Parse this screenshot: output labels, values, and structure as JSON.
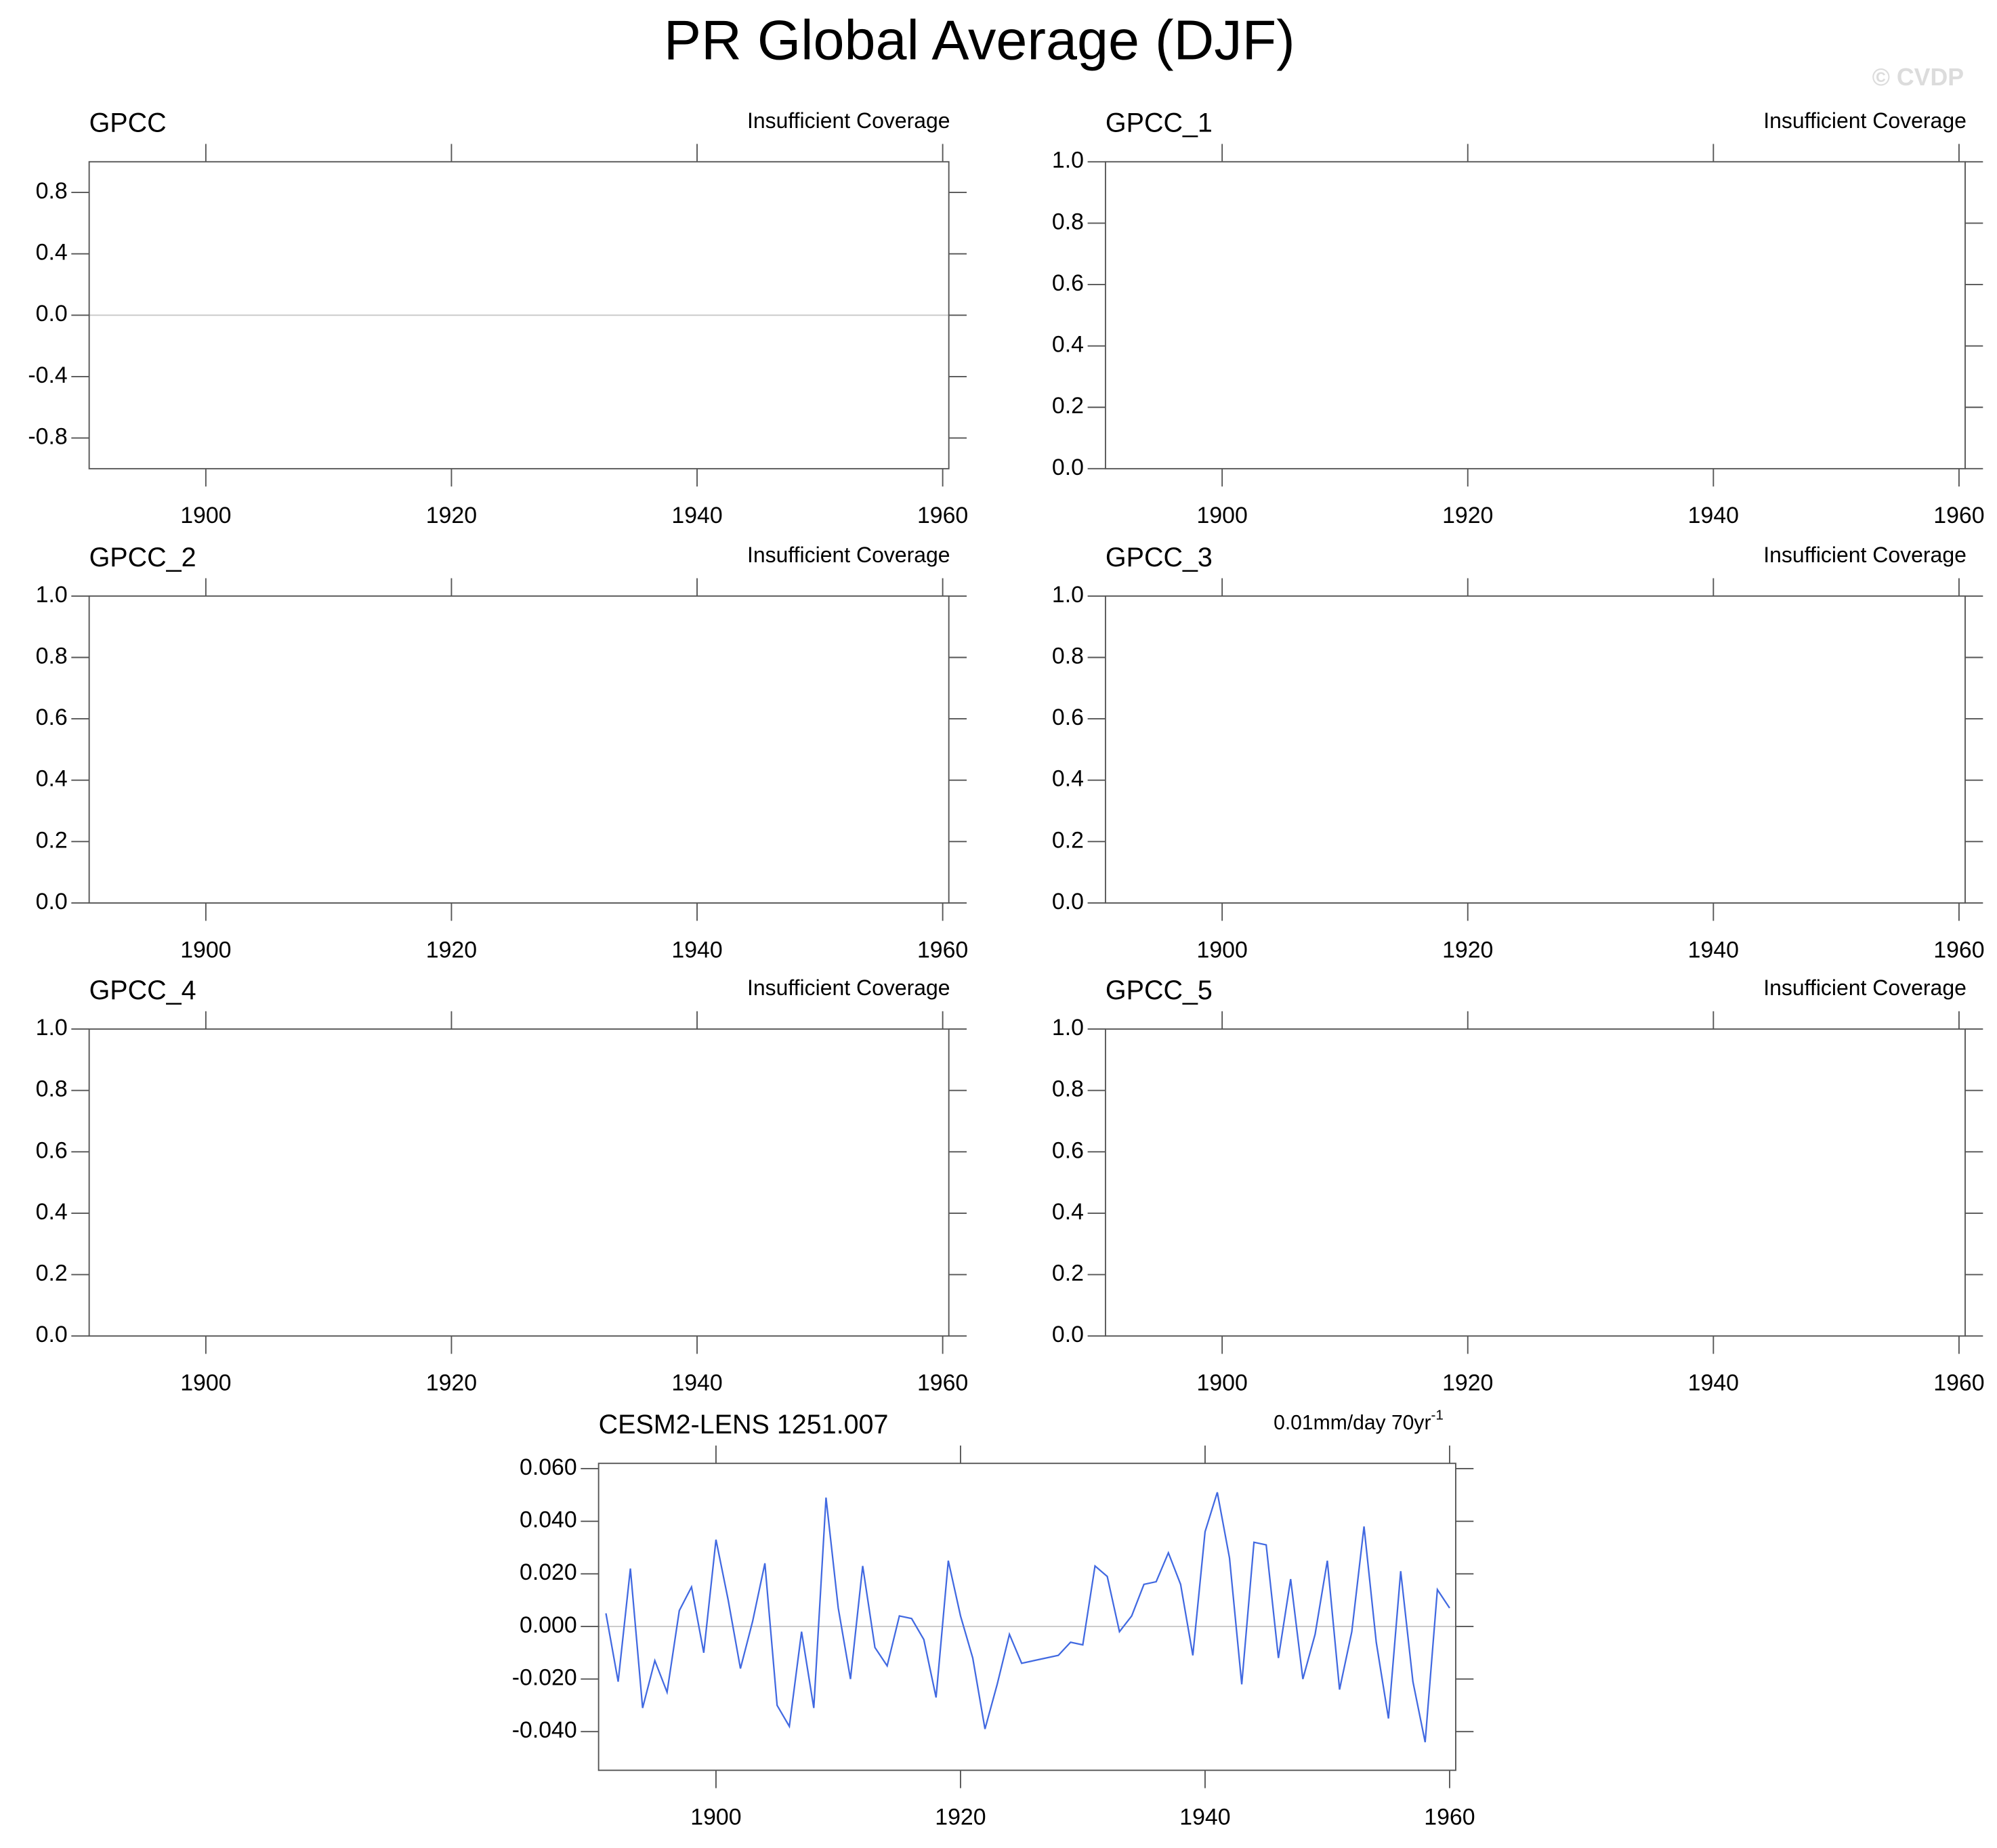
{
  "title": "PR Global Average (DJF)",
  "watermark": "© CVDP",
  "chart_data": [
    {
      "type": "line",
      "title": "GPCC",
      "subtitle": "Insufficient Coverage",
      "series": [],
      "zero_line": true,
      "xlim": [
        1890.5,
        1960.5
      ],
      "xticks": [
        1900,
        1920,
        1940,
        1960
      ],
      "ylim": [
        -1,
        1
      ],
      "yticks": [
        -0.8,
        -0.4,
        {
          "value": 0,
          "label": "0.0"
        },
        0.4,
        0.8
      ]
    },
    {
      "type": "line",
      "title": "GPCC_1",
      "subtitle": "Insufficient Coverage",
      "series": [],
      "xlim": [
        1890.5,
        1960.5
      ],
      "xticks": [
        1900,
        1920,
        1940,
        1960
      ],
      "ylim": [
        0,
        1
      ],
      "yticks": [
        {
          "value": 0,
          "label": "0.0"
        },
        0.2,
        0.4,
        0.6,
        0.8,
        {
          "value": 1,
          "label": "1.0"
        }
      ]
    },
    {
      "type": "line",
      "title": "GPCC_2",
      "subtitle": "Insufficient Coverage",
      "series": [],
      "xlim": [
        1890.5,
        1960.5
      ],
      "xticks": [
        1900,
        1920,
        1940,
        1960
      ],
      "ylim": [
        0,
        1
      ],
      "yticks": [
        {
          "value": 0,
          "label": "0.0"
        },
        0.2,
        0.4,
        0.6,
        0.8,
        {
          "value": 1,
          "label": "1.0"
        }
      ]
    },
    {
      "type": "line",
      "title": "GPCC_3",
      "subtitle": "Insufficient Coverage",
      "series": [],
      "xlim": [
        1890.5,
        1960.5
      ],
      "xticks": [
        1900,
        1920,
        1940,
        1960
      ],
      "ylim": [
        0,
        1
      ],
      "yticks": [
        {
          "value": 0,
          "label": "0.0"
        },
        0.2,
        0.4,
        0.6,
        0.8,
        {
          "value": 1,
          "label": "1.0"
        }
      ]
    },
    {
      "type": "line",
      "title": "GPCC_4",
      "subtitle": "Insufficient Coverage",
      "series": [],
      "xlim": [
        1890.5,
        1960.5
      ],
      "xticks": [
        1900,
        1920,
        1940,
        1960
      ],
      "ylim": [
        0,
        1
      ],
      "yticks": [
        {
          "value": 0,
          "label": "0.0"
        },
        0.2,
        0.4,
        0.6,
        0.8,
        {
          "value": 1,
          "label": "1.0"
        }
      ]
    },
    {
      "type": "line",
      "title": "GPCC_5",
      "subtitle": "Insufficient Coverage",
      "series": [],
      "xlim": [
        1890.5,
        1960.5
      ],
      "xticks": [
        1900,
        1920,
        1940,
        1960
      ],
      "ylim": [
        0,
        1
      ],
      "yticks": [
        {
          "value": 0,
          "label": "0.0"
        },
        0.2,
        0.4,
        0.6,
        0.8,
        {
          "value": 1,
          "label": "1.0"
        }
      ]
    },
    {
      "type": "line",
      "title": "CESM2-LENS 1251.007",
      "annotation": "0.01mm/day 70yr",
      "annotation_superscript": "-1",
      "zero_line": true,
      "xlim": [
        1890.4,
        1960.5
      ],
      "xticks": [
        1900,
        1920,
        1940,
        1960
      ],
      "ylim": [
        -0.0547,
        0.062
      ],
      "yticks": [
        {
          "value": -0.04,
          "label": "-0.040"
        },
        {
          "value": -0.02,
          "label": "-0.020"
        },
        {
          "value": 0,
          "label": "0.000"
        },
        {
          "value": 0.02,
          "label": "0.020"
        },
        {
          "value": 0.04,
          "label": "0.040"
        },
        {
          "value": 0.06,
          "label": "0.060"
        }
      ],
      "x": [
        1891,
        1892,
        1893,
        1894,
        1895,
        1896,
        1897,
        1898,
        1899,
        1900,
        1901,
        1902,
        1903,
        1904,
        1905,
        1906,
        1907,
        1908,
        1909,
        1910,
        1911,
        1912,
        1913,
        1914,
        1915,
        1916,
        1917,
        1918,
        1919,
        1920,
        1921,
        1922,
        1923,
        1924,
        1925,
        1926,
        1927,
        1928,
        1929,
        1930,
        1931,
        1932,
        1933,
        1934,
        1935,
        1936,
        1937,
        1938,
        1939,
        1940,
        1941,
        1942,
        1943,
        1944,
        1945,
        1946,
        1947,
        1948,
        1949,
        1950,
        1951,
        1952,
        1953,
        1954,
        1955,
        1956,
        1957,
        1958,
        1959,
        1960
      ],
      "series": [
        {
          "color": "#4169e1",
          "values": [
            0.005,
            -0.021,
            0.022,
            -0.031,
            -0.013,
            -0.025,
            0.006,
            0.015,
            -0.01,
            0.033,
            0.01,
            -0.016,
            0.002,
            0.024,
            -0.03,
            -0.038,
            -0.002,
            -0.031,
            0.049,
            0.007,
            -0.02,
            0.023,
            -0.008,
            -0.015,
            0.004,
            0.003,
            -0.005,
            -0.027,
            0.025,
            0.004,
            -0.012,
            -0.039,
            -0.022,
            -0.003,
            -0.014,
            -0.013,
            -0.012,
            -0.011,
            -0.006,
            -0.007,
            0.023,
            0.019,
            -0.002,
            0.004,
            0.016,
            0.017,
            0.028,
            0.016,
            -0.011,
            0.036,
            0.051,
            0.026,
            -0.022,
            0.032,
            0.031,
            -0.012,
            0.018,
            -0.02,
            -0.003,
            0.025,
            -0.024,
            -0.002,
            0.038,
            -0.006,
            -0.035,
            0.021,
            -0.021,
            -0.044,
            0.014,
            0.007
          ]
        }
      ]
    }
  ]
}
